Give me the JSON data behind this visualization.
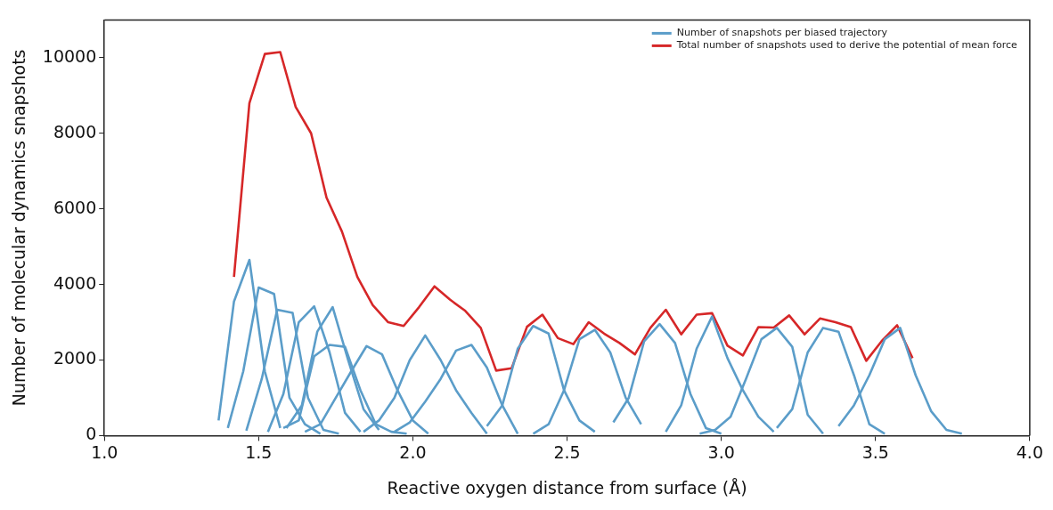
{
  "chart_data": {
    "type": "line",
    "xlabel": "Reactive oxygen distance from surface (Å)",
    "ylabel": "Number of molecular dynamics snapshots",
    "xlim": [
      1.0,
      4.0
    ],
    "xticks": [
      {
        "value": 1,
        "label": "1.0"
      },
      {
        "value": 1.5,
        "label": "1.5"
      },
      {
        "value": 2,
        "label": "2.0"
      },
      {
        "value": 2.5,
        "label": "2.5"
      },
      {
        "value": 3,
        "label": "3.0"
      },
      {
        "value": 3.5,
        "label": "3.5"
      },
      {
        "value": 4,
        "label": "4.0"
      }
    ],
    "ylim": [
      0,
      11000
    ],
    "yticks": [
      0,
      2000,
      4000,
      6000,
      8000,
      10000
    ],
    "grid": false,
    "legend": "top right",
    "marker": "none",
    "line_style": "solid",
    "series": [
      {
        "name": "Number of snapshots per biased trajectory",
        "color": "#5b9dc9",
        "x": [
          1.37,
          1.42,
          1.47,
          1.52,
          1.57
        ],
        "values": [
          400,
          3550,
          4650,
          1700,
          200
        ]
      },
      {
        "color": "#5b9dc9",
        "x": [
          1.4,
          1.45,
          1.5,
          1.55,
          1.6,
          1.65,
          1.7
        ],
        "values": [
          200,
          1700,
          3920,
          3750,
          1000,
          300,
          50
        ]
      },
      {
        "color": "#5b9dc9",
        "x": [
          1.46,
          1.51,
          1.56,
          1.61,
          1.66,
          1.71,
          1.76
        ],
        "values": [
          130,
          1500,
          3330,
          3250,
          1000,
          150,
          50
        ]
      },
      {
        "color": "#5b9dc9",
        "x": [
          1.53,
          1.58,
          1.63,
          1.68,
          1.73,
          1.78,
          1.83
        ],
        "values": [
          100,
          1100,
          3000,
          3420,
          2200,
          600,
          100
        ]
      },
      {
        "color": "#5b9dc9",
        "x": [
          1.59,
          1.64,
          1.69,
          1.74,
          1.79,
          1.84,
          1.89
        ],
        "values": [
          200,
          800,
          2750,
          3400,
          2000,
          700,
          150
        ]
      },
      {
        "color": "#5b9dc9",
        "x": [
          1.58,
          1.63,
          1.68,
          1.73,
          1.78,
          1.83,
          1.88,
          1.93,
          1.98
        ],
        "values": [
          200,
          400,
          2100,
          2400,
          2350,
          1200,
          300,
          100,
          50
        ]
      },
      {
        "color": "#5b9dc9",
        "x": [
          1.65,
          1.7,
          1.75,
          1.8,
          1.85,
          1.9,
          1.95,
          2.0,
          2.05
        ],
        "values": [
          100,
          300,
          1000,
          1700,
          2370,
          2150,
          1200,
          400,
          50
        ]
      },
      {
        "color": "#5b9dc9",
        "x": [
          1.84,
          1.89,
          1.94,
          1.99,
          2.04,
          2.09,
          2.14,
          2.19,
          2.24
        ],
        "values": [
          100,
          400,
          1000,
          2000,
          2650,
          2000,
          1200,
          600,
          50
        ]
      },
      {
        "color": "#5b9dc9",
        "x": [
          1.94,
          1.99,
          2.04,
          2.09,
          2.14,
          2.19,
          2.24,
          2.29,
          2.34
        ],
        "values": [
          100,
          350,
          900,
          1500,
          2250,
          2400,
          1800,
          800,
          50
        ]
      },
      {
        "color": "#5b9dc9",
        "x": [
          2.24,
          2.29,
          2.34,
          2.39,
          2.44,
          2.49,
          2.54,
          2.59
        ],
        "values": [
          250,
          800,
          2300,
          2900,
          2700,
          1200,
          400,
          100
        ]
      },
      {
        "color": "#5b9dc9",
        "x": [
          2.39,
          2.44,
          2.49,
          2.54,
          2.59,
          2.64,
          2.69,
          2.74
        ],
        "values": [
          50,
          300,
          1200,
          2550,
          2800,
          2200,
          1000,
          300
        ]
      },
      {
        "color": "#5b9dc9",
        "x": [
          2.65,
          2.7,
          2.75,
          2.8,
          2.85,
          2.9,
          2.95,
          3.0
        ],
        "values": [
          350,
          1000,
          2500,
          2950,
          2450,
          1100,
          200,
          50
        ]
      },
      {
        "color": "#5b9dc9",
        "x": [
          2.82,
          2.87,
          2.92,
          2.97,
          3.02,
          3.07,
          3.12,
          3.17
        ],
        "values": [
          100,
          800,
          2300,
          3150,
          2050,
          1200,
          500,
          100
        ]
      },
      {
        "color": "#5b9dc9",
        "x": [
          2.93,
          2.98,
          3.03,
          3.08,
          3.13,
          3.18,
          3.23,
          3.28,
          3.33
        ],
        "values": [
          50,
          150,
          500,
          1500,
          2550,
          2850,
          2350,
          550,
          50
        ]
      },
      {
        "color": "#5b9dc9",
        "x": [
          3.18,
          3.23,
          3.28,
          3.33,
          3.38,
          3.43,
          3.48,
          3.53
        ],
        "values": [
          200,
          700,
          2200,
          2850,
          2750,
          1600,
          300,
          50
        ]
      },
      {
        "color": "#5b9dc9",
        "x": [
          3.38,
          3.43,
          3.48,
          3.53,
          3.58,
          3.63,
          3.68,
          3.73,
          3.78
        ],
        "values": [
          250,
          800,
          1600,
          2550,
          2850,
          1600,
          650,
          150,
          50
        ]
      },
      {
        "name": "Total number of snapshots used to derive the potential of mean force",
        "color": "#d62728",
        "x": [
          1.42,
          1.47,
          1.52,
          1.57,
          1.62,
          1.67,
          1.72,
          1.77,
          1.82,
          1.87,
          1.92,
          1.97,
          2.02,
          2.07,
          2.12,
          2.17,
          2.22,
          2.27,
          2.32,
          2.37,
          2.42,
          2.47,
          2.52,
          2.57,
          2.62,
          2.67,
          2.72,
          2.77,
          2.82,
          2.87,
          2.92,
          2.97,
          3.02,
          3.07,
          3.12,
          3.17,
          3.22,
          3.27,
          3.32,
          3.37,
          3.42,
          3.47,
          3.52,
          3.57,
          3.62
        ],
        "values": [
          4200,
          8800,
          10100,
          10150,
          8700,
          8000,
          6300,
          5400,
          4200,
          3450,
          3000,
          2900,
          3400,
          3950,
          3600,
          3300,
          2850,
          1720,
          1780,
          2880,
          3200,
          2580,
          2420,
          3000,
          2700,
          2450,
          2150,
          2850,
          3330,
          2680,
          3200,
          3240,
          2380,
          2120,
          2870,
          2860,
          3180,
          2680,
          3100,
          3000,
          2870,
          1980,
          2500,
          2920,
          2050
        ]
      }
    ]
  }
}
